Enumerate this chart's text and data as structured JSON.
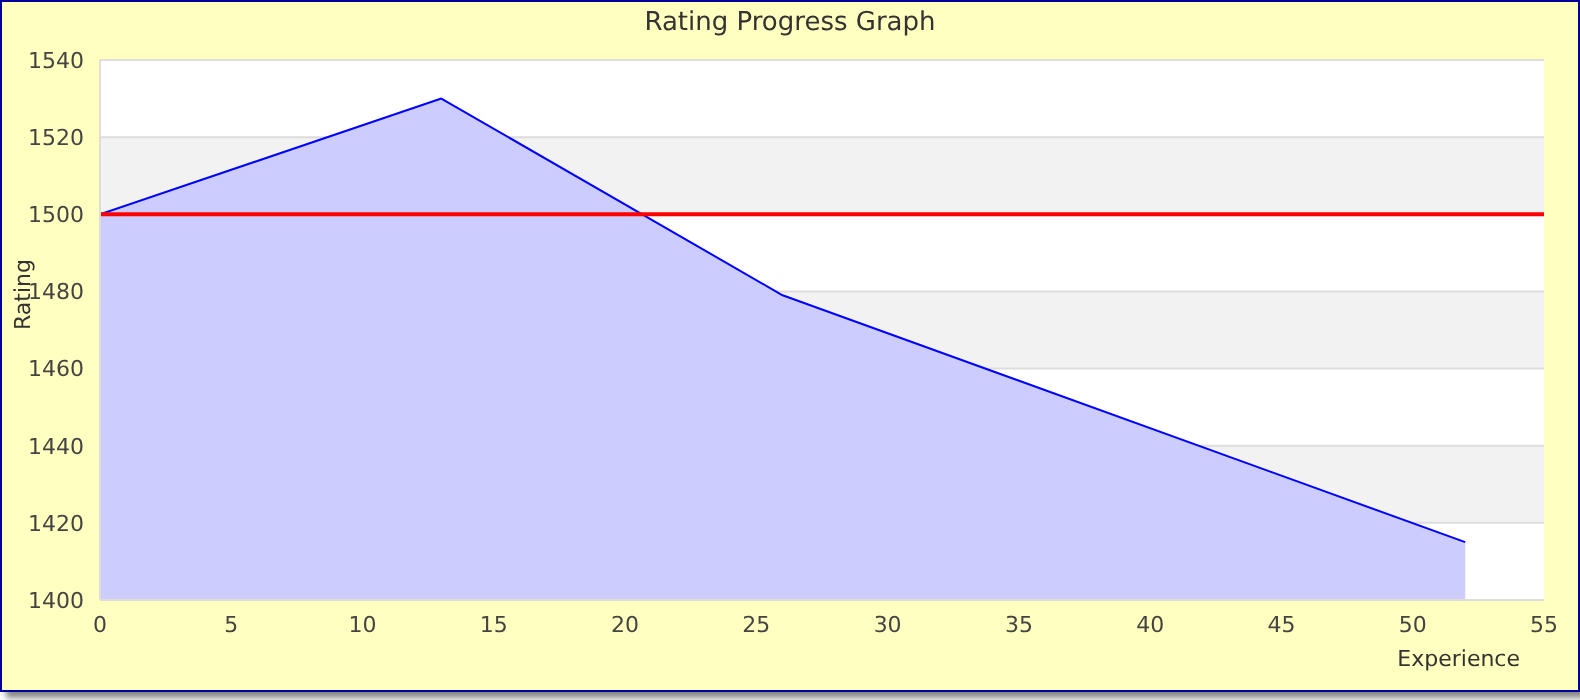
{
  "chart_data": {
    "type": "area",
    "title": "Rating Progress Graph",
    "xlabel": "Experience",
    "ylabel": "Rating",
    "x": [
      0,
      13,
      26,
      52
    ],
    "series": [
      {
        "color": "#0000ff",
        "values": [
          1500,
          1530,
          1479,
          1415
        ]
      }
    ],
    "xlim": [
      0,
      55
    ],
    "xticks": [
      0,
      5,
      10,
      15,
      20,
      25,
      30,
      35,
      40,
      45,
      50,
      55
    ],
    "ylim": [
      1400,
      1540
    ],
    "yticks": [
      1400,
      1420,
      1440,
      1460,
      1480,
      1500,
      1520,
      1540
    ],
    "ref_lines": [
      {
        "axis": "y",
        "value": 1500,
        "color": "#ff0000"
      }
    ],
    "grid": "y",
    "legend": false
  }
}
